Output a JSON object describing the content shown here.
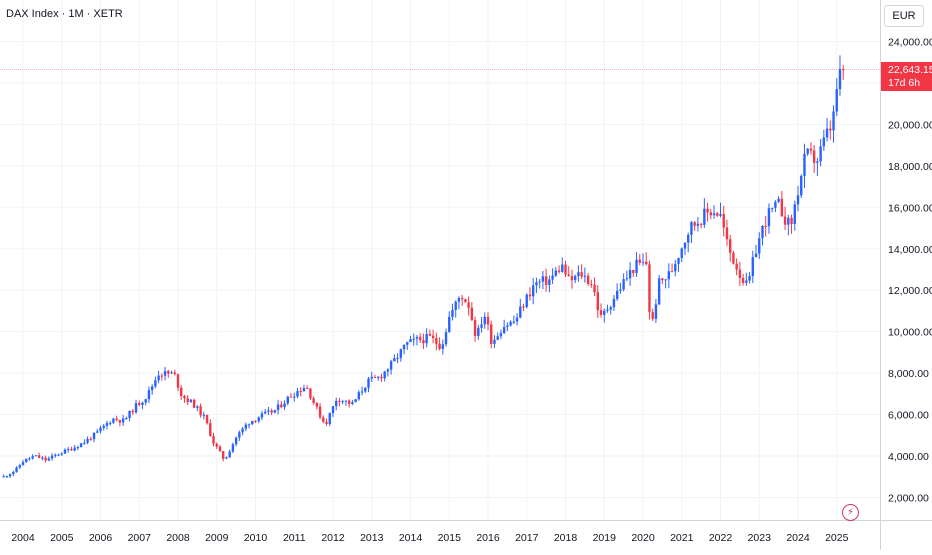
{
  "header": {
    "symbol_title": "DAX Index · 1M · XETR"
  },
  "price_scale": {
    "currency": "EUR"
  },
  "last_price": {
    "value": "22,643.15",
    "countdown": "17d 6h"
  },
  "icons": {
    "bolt": "lightning-bolt-icon"
  },
  "colors": {
    "up": "#2962ff",
    "down": "#f23645",
    "grid": "#f0f3fa",
    "axis_text": "#131722",
    "last_line": "#f23645",
    "bolt": "#d6336c"
  },
  "chart_data": {
    "type": "candlestick",
    "interval": "1M",
    "x_ticks": [
      "2004",
      "2005",
      "2006",
      "2007",
      "2008",
      "2009",
      "2010",
      "2011",
      "2012",
      "2013",
      "2014",
      "2015",
      "2016",
      "2017",
      "2018",
      "2019",
      "2020",
      "2021",
      "2022",
      "2023",
      "2024",
      "2025"
    ],
    "y_ticks": [
      "2,000.00",
      "4,000.00",
      "6,000.00",
      "8,000.00",
      "10,000.00",
      "12,000.00",
      "14,000.00",
      "16,000.00",
      "18,000.00",
      "20,000.00",
      "22,000.00",
      "24,000.00"
    ],
    "y_range": [
      1000,
      25000
    ],
    "grid": true,
    "last_value": 22643.15,
    "close_path": [
      [
        2003.5,
        3000
      ],
      [
        2003.8,
        3300
      ],
      [
        2004.0,
        3750
      ],
      [
        2004.3,
        4000
      ],
      [
        2004.6,
        3800
      ],
      [
        2004.9,
        4100
      ],
      [
        2005.3,
        4400
      ],
      [
        2005.6,
        4700
      ],
      [
        2005.9,
        5100
      ],
      [
        2006.3,
        5800
      ],
      [
        2006.6,
        5700
      ],
      [
        2006.9,
        6400
      ],
      [
        2007.2,
        6900
      ],
      [
        2007.5,
        8000
      ],
      [
        2007.9,
        7950
      ],
      [
        2008.1,
        6900
      ],
      [
        2008.4,
        6500
      ],
      [
        2008.7,
        5800
      ],
      [
        2008.9,
        4700
      ],
      [
        2009.2,
        3800
      ],
      [
        2009.5,
        4900
      ],
      [
        2009.8,
        5600
      ],
      [
        2010.1,
        5900
      ],
      [
        2010.5,
        6200
      ],
      [
        2010.9,
        6900
      ],
      [
        2011.3,
        7400
      ],
      [
        2011.6,
        6200
      ],
      [
        2011.8,
        5500
      ],
      [
        2012.1,
        6800
      ],
      [
        2012.5,
        6500
      ],
      [
        2012.9,
        7600
      ],
      [
        2013.2,
        7800
      ],
      [
        2013.5,
        8400
      ],
      [
        2013.9,
        9400
      ],
      [
        2014.2,
        9600
      ],
      [
        2014.5,
        9700
      ],
      [
        2014.8,
        9300
      ],
      [
        2015.0,
        10700
      ],
      [
        2015.3,
        11800
      ],
      [
        2015.5,
        11300
      ],
      [
        2015.7,
        9700
      ],
      [
        2015.9,
        10900
      ],
      [
        2016.1,
        9500
      ],
      [
        2016.4,
        10300
      ],
      [
        2016.7,
        10500
      ],
      [
        2016.9,
        11300
      ],
      [
        2017.2,
        12300
      ],
      [
        2017.6,
        12500
      ],
      [
        2017.9,
        13200
      ],
      [
        2018.1,
        12400
      ],
      [
        2018.4,
        12800
      ],
      [
        2018.7,
        12300
      ],
      [
        2018.9,
        10600
      ],
      [
        2019.2,
        11500
      ],
      [
        2019.5,
        12400
      ],
      [
        2019.8,
        13200
      ],
      [
        2020.1,
        13300
      ],
      [
        2020.2,
        9900
      ],
      [
        2020.4,
        12300
      ],
      [
        2020.7,
        12800
      ],
      [
        2020.9,
        13700
      ],
      [
        2021.2,
        15000
      ],
      [
        2021.5,
        15500
      ],
      [
        2021.8,
        15900
      ],
      [
        2022.0,
        15600
      ],
      [
        2022.2,
        14000
      ],
      [
        2022.5,
        12800
      ],
      [
        2022.7,
        12100
      ],
      [
        2022.9,
        13900
      ],
      [
        2023.2,
        15600
      ],
      [
        2023.5,
        16100
      ],
      [
        2023.8,
        15000
      ],
      [
        2024.0,
        16800
      ],
      [
        2024.2,
        18500
      ],
      [
        2024.5,
        18300
      ],
      [
        2024.7,
        19300
      ],
      [
        2024.9,
        20100
      ],
      [
        2025.0,
        21700
      ],
      [
        2025.15,
        22640
      ]
    ]
  }
}
